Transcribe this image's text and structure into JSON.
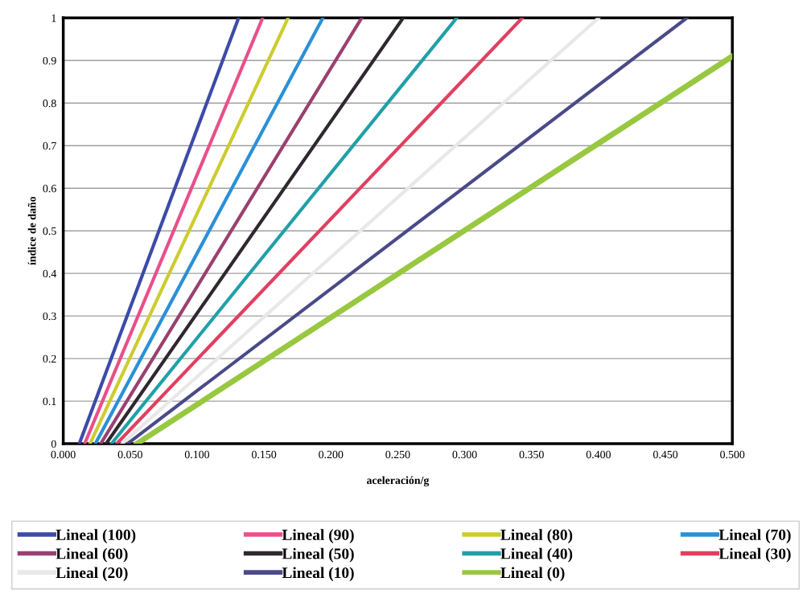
{
  "chart_data": {
    "type": "line",
    "xlabel": "aceleración/g",
    "ylabel": "índice de daño",
    "xlim": [
      0,
      0.5
    ],
    "ylim": [
      0,
      1
    ],
    "xticks": [
      {
        "value": 0,
        "label": "0.000"
      },
      {
        "value": 0.05,
        "label": "0.050"
      },
      {
        "value": 0.1,
        "label": "0.100"
      },
      {
        "value": 0.15,
        "label": "0.150"
      },
      {
        "value": 0.2,
        "label": "0.200"
      },
      {
        "value": 0.25,
        "label": "0.250"
      },
      {
        "value": 0.3,
        "label": "0.300"
      },
      {
        "value": 0.35,
        "label": "0.350"
      },
      {
        "value": 0.4,
        "label": "0.400"
      },
      {
        "value": 0.45,
        "label": "0.450"
      },
      {
        "value": 0.5,
        "label": "0.500"
      }
    ],
    "yticks": [
      0,
      0.1,
      0.2,
      0.3,
      0.4,
      0.5,
      0.6,
      0.7,
      0.8,
      0.9,
      1
    ],
    "grid": "y",
    "legend": "bottom",
    "marker": "none",
    "line_style": "solid",
    "series": [
      {
        "name": "Lineal (100)",
        "color": "#3c4aa8",
        "x": [
          0.012,
          0.131
        ],
        "values": [
          0,
          1
        ]
      },
      {
        "name": "Lineal (90)",
        "color": "#e8508a",
        "x": [
          0.016,
          0.149
        ],
        "values": [
          0,
          1
        ]
      },
      {
        "name": "Lineal (80)",
        "color": "#cccc30",
        "x": [
          0.02,
          0.168
        ],
        "values": [
          0,
          1
        ]
      },
      {
        "name": "Lineal (70)",
        "color": "#2a90d8",
        "x": [
          0.024,
          0.194
        ],
        "values": [
          0,
          1
        ]
      },
      {
        "name": "Lineal (60)",
        "color": "#9a4070",
        "x": [
          0.028,
          0.223
        ],
        "values": [
          0,
          1
        ]
      },
      {
        "name": "Lineal (50)",
        "color": "#302830",
        "x": [
          0.032,
          0.254
        ],
        "values": [
          0,
          1
        ]
      },
      {
        "name": "Lineal (40)",
        "color": "#20a0a8",
        "x": [
          0.036,
          0.294
        ],
        "values": [
          0,
          1
        ]
      },
      {
        "name": "Lineal (30)",
        "color": "#e04060",
        "x": [
          0.04,
          0.343
        ],
        "values": [
          0,
          1
        ]
      },
      {
        "name": "Lineal (20)",
        "color": "#e8e8e8",
        "x": [
          0.044,
          0.4
        ],
        "values": [
          0,
          1
        ]
      },
      {
        "name": "Lineal (10)",
        "color": "#4a4a88",
        "x": [
          0.048,
          0.466
        ],
        "values": [
          0,
          1
        ]
      },
      {
        "name": "Lineal (0)",
        "color": "#98c840",
        "x": [
          0.055,
          0.5
        ],
        "values": [
          0,
          0.91
        ]
      }
    ]
  }
}
